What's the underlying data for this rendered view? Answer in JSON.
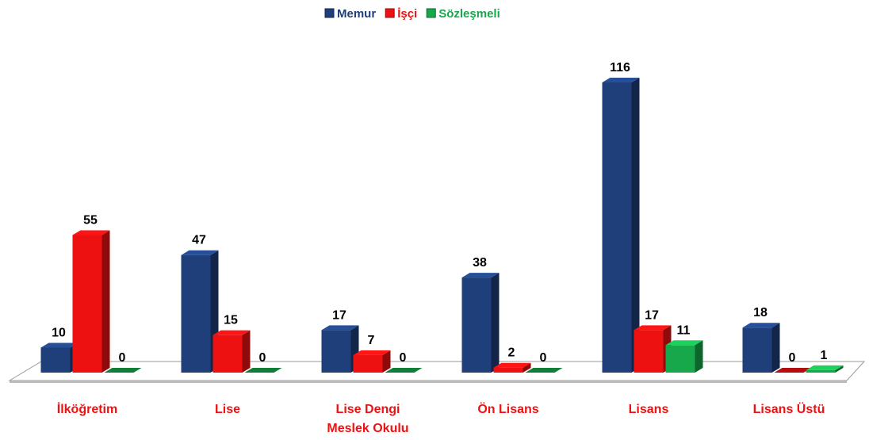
{
  "chart_data": {
    "type": "bar3d",
    "categories": [
      "İlköğretim",
      "Lise",
      "Lise Dengi Meslek Okulu",
      "Ön Lisans",
      "Lisans",
      "Lisans Üstü"
    ],
    "series": [
      {
        "name": "Memur",
        "color": "#1f3f7a",
        "values": [
          10,
          47,
          17,
          38,
          116,
          18
        ]
      },
      {
        "name": "İşçi",
        "color": "#ee1111",
        "values": [
          55,
          15,
          7,
          2,
          17,
          0
        ]
      },
      {
        "name": "Sözleşmeli",
        "color": "#16a84a",
        "values": [
          0,
          0,
          0,
          0,
          11,
          1
        ]
      }
    ],
    "legend": "top"
  }
}
